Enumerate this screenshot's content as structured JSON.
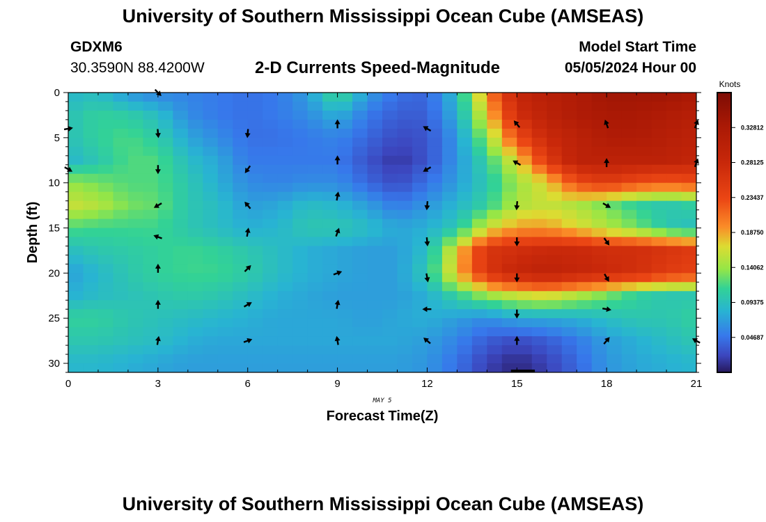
{
  "header": {
    "title": "University of Southern Mississippi Ocean Cube (AMSEAS)",
    "station_id": "GDXM6",
    "station_coords": "30.3590N  88.4200W",
    "plot_title": "2-D Currents Speed-Magnitude",
    "model_start_label": "Model Start Time",
    "model_start_value": "05/05/2024 Hour 00"
  },
  "footer": {
    "title": "University of Southern Mississippi Ocean Cube (AMSEAS)"
  },
  "chart_data": {
    "type": "heatmap",
    "title": "2-D Currents Speed-Magnitude",
    "xlabel": "Forecast Time(Z)",
    "ylabel": "Depth (ft)",
    "date_label": "MAY 5",
    "x_range": [
      0,
      21
    ],
    "y_range": [
      0,
      31
    ],
    "x_ticks": [
      0,
      3,
      6,
      9,
      12,
      15,
      18,
      21
    ],
    "y_ticks": [
      0,
      5,
      10,
      15,
      20,
      25,
      30
    ],
    "colorbar": {
      "label": "Knots",
      "range": [
        0,
        0.375
      ],
      "ticks": [
        "0.04687",
        "0.09375",
        "0.14062",
        "0.18750",
        "0.23437",
        "0.28125",
        "0.32812"
      ],
      "tick_values": [
        0.04687,
        0.09375,
        0.14062,
        0.1875,
        0.23437,
        0.28125,
        0.32812
      ]
    },
    "times": [
      0,
      1,
      2,
      3,
      4,
      5,
      6,
      7,
      8,
      9,
      10,
      11,
      12,
      13,
      14,
      15,
      16,
      17,
      18,
      19,
      20,
      21
    ],
    "depths": [
      0,
      2.5,
      5,
      7.5,
      10,
      12.5,
      15,
      17.5,
      20,
      22.5,
      25,
      27.5,
      30
    ],
    "speed_knots": [
      [
        0.085,
        0.09,
        0.065,
        0.055,
        0.055,
        0.05,
        0.045,
        0.05,
        0.07,
        0.12,
        0.07,
        0.045,
        0.04,
        0.09,
        0.2,
        0.29,
        0.31,
        0.32,
        0.34,
        0.34,
        0.34,
        0.33
      ],
      [
        0.095,
        0.11,
        0.105,
        0.09,
        0.06,
        0.05,
        0.045,
        0.05,
        0.06,
        0.08,
        0.05,
        0.035,
        0.035,
        0.08,
        0.17,
        0.27,
        0.3,
        0.32,
        0.33,
        0.33,
        0.32,
        0.31
      ],
      [
        0.095,
        0.11,
        0.12,
        0.105,
        0.075,
        0.06,
        0.045,
        0.045,
        0.05,
        0.055,
        0.04,
        0.025,
        0.03,
        0.065,
        0.14,
        0.23,
        0.28,
        0.3,
        0.32,
        0.32,
        0.31,
        0.3
      ],
      [
        0.085,
        0.1,
        0.12,
        0.12,
        0.09,
        0.075,
        0.05,
        0.05,
        0.05,
        0.05,
        0.03,
        0.015,
        0.03,
        0.065,
        0.11,
        0.17,
        0.25,
        0.3,
        0.3,
        0.3,
        0.3,
        0.29
      ],
      [
        0.14,
        0.13,
        0.12,
        0.12,
        0.1,
        0.08,
        0.06,
        0.055,
        0.06,
        0.06,
        0.04,
        0.025,
        0.045,
        0.07,
        0.1,
        0.14,
        0.17,
        0.23,
        0.25,
        0.23,
        0.22,
        0.23
      ],
      [
        0.16,
        0.15,
        0.13,
        0.125,
        0.1,
        0.09,
        0.07,
        0.075,
        0.09,
        0.085,
        0.07,
        0.05,
        0.065,
        0.085,
        0.11,
        0.15,
        0.16,
        0.15,
        0.13,
        0.11,
        0.1,
        0.11
      ],
      [
        0.12,
        0.115,
        0.115,
        0.115,
        0.1,
        0.09,
        0.08,
        0.085,
        0.1,
        0.1,
        0.09,
        0.075,
        0.08,
        0.1,
        0.16,
        0.19,
        0.19,
        0.17,
        0.15,
        0.13,
        0.1,
        0.09
      ],
      [
        0.09,
        0.1,
        0.105,
        0.11,
        0.115,
        0.11,
        0.1,
        0.09,
        0.08,
        0.075,
        0.07,
        0.07,
        0.09,
        0.17,
        0.26,
        0.27,
        0.28,
        0.28,
        0.27,
        0.27,
        0.26,
        0.25
      ],
      [
        0.07,
        0.085,
        0.1,
        0.11,
        0.115,
        0.115,
        0.105,
        0.09,
        0.08,
        0.075,
        0.07,
        0.07,
        0.1,
        0.18,
        0.26,
        0.29,
        0.3,
        0.29,
        0.28,
        0.27,
        0.25,
        0.24
      ],
      [
        0.08,
        0.09,
        0.095,
        0.1,
        0.105,
        0.1,
        0.09,
        0.08,
        0.075,
        0.07,
        0.07,
        0.07,
        0.08,
        0.11,
        0.14,
        0.16,
        0.17,
        0.15,
        0.13,
        0.11,
        0.1,
        0.1
      ],
      [
        0.11,
        0.11,
        0.1,
        0.095,
        0.09,
        0.085,
        0.08,
        0.075,
        0.075,
        0.075,
        0.07,
        0.075,
        0.08,
        0.07,
        0.06,
        0.075,
        0.075,
        0.08,
        0.09,
        0.1,
        0.1,
        0.11
      ],
      [
        0.1,
        0.1,
        0.095,
        0.09,
        0.08,
        0.075,
        0.075,
        0.075,
        0.075,
        0.075,
        0.075,
        0.075,
        0.07,
        0.055,
        0.035,
        0.025,
        0.035,
        0.05,
        0.07,
        0.08,
        0.09,
        0.1
      ],
      [
        0.085,
        0.085,
        0.08,
        0.075,
        0.07,
        0.07,
        0.07,
        0.07,
        0.07,
        0.07,
        0.07,
        0.07,
        0.065,
        0.045,
        0.02,
        0.008,
        0.02,
        0.04,
        0.065,
        0.075,
        0.08,
        0.085
      ]
    ],
    "vectors": [
      {
        "t": 0,
        "d": 0,
        "dir": 180,
        "len": 0
      },
      {
        "t": 3,
        "d": 0,
        "dir": 135,
        "len": 1
      },
      {
        "t": 0,
        "d": 4,
        "dir": 80,
        "len": 1
      },
      {
        "t": 3,
        "d": 4.5,
        "dir": 175,
        "len": 1
      },
      {
        "t": 6,
        "d": 4.5,
        "dir": 185,
        "len": 1
      },
      {
        "t": 9,
        "d": 3.5,
        "dir": 0,
        "len": 1
      },
      {
        "t": 12,
        "d": 4,
        "dir": 300,
        "len": 1
      },
      {
        "t": 15,
        "d": 3.5,
        "dir": 320,
        "len": 1
      },
      {
        "t": 18,
        "d": 3.5,
        "dir": 340,
        "len": 1
      },
      {
        "t": 21,
        "d": 3.5,
        "dir": 20,
        "len": 1
      },
      {
        "t": 0,
        "d": 8.5,
        "dir": 120,
        "len": 1
      },
      {
        "t": 3,
        "d": 8.5,
        "dir": 180,
        "len": 1
      },
      {
        "t": 6,
        "d": 8.5,
        "dir": 215,
        "len": 1
      },
      {
        "t": 9,
        "d": 7.5,
        "dir": 0,
        "len": 1
      },
      {
        "t": 12,
        "d": 8.5,
        "dir": 240,
        "len": 1
      },
      {
        "t": 15,
        "d": 7.8,
        "dir": 300,
        "len": 1
      },
      {
        "t": 18,
        "d": 7.8,
        "dir": 0,
        "len": 1
      },
      {
        "t": 21,
        "d": 7.8,
        "dir": 20,
        "len": 1
      },
      {
        "t": 0,
        "d": 12.5,
        "dir": 0,
        "len": 0
      },
      {
        "t": 3,
        "d": 12.5,
        "dir": 240,
        "len": 1
      },
      {
        "t": 6,
        "d": 12.5,
        "dir": 320,
        "len": 1
      },
      {
        "t": 9,
        "d": 11.5,
        "dir": 10,
        "len": 1
      },
      {
        "t": 12,
        "d": 12.5,
        "dir": 185,
        "len": 1
      },
      {
        "t": 15,
        "d": 12.5,
        "dir": 185,
        "len": 1
      },
      {
        "t": 18,
        "d": 12.5,
        "dir": 120,
        "len": 1
      },
      {
        "t": 3,
        "d": 16,
        "dir": 290,
        "len": 1
      },
      {
        "t": 6,
        "d": 15.5,
        "dir": 10,
        "len": 1
      },
      {
        "t": 9,
        "d": 15.5,
        "dir": 20,
        "len": 1
      },
      {
        "t": 12,
        "d": 16.5,
        "dir": 175,
        "len": 1
      },
      {
        "t": 15,
        "d": 16.5,
        "dir": 180,
        "len": 1
      },
      {
        "t": 18,
        "d": 16.5,
        "dir": 145,
        "len": 1
      },
      {
        "t": 3,
        "d": 19.5,
        "dir": 0,
        "len": 1
      },
      {
        "t": 6,
        "d": 19.5,
        "dir": 45,
        "len": 1
      },
      {
        "t": 9,
        "d": 20,
        "dir": 70,
        "len": 1
      },
      {
        "t": 12,
        "d": 20.5,
        "dir": 170,
        "len": 1
      },
      {
        "t": 15,
        "d": 20.5,
        "dir": 180,
        "len": 1
      },
      {
        "t": 18,
        "d": 20.5,
        "dir": 150,
        "len": 1
      },
      {
        "t": 3,
        "d": 23.5,
        "dir": 0,
        "len": 1
      },
      {
        "t": 6,
        "d": 23.5,
        "dir": 60,
        "len": 1
      },
      {
        "t": 9,
        "d": 23.5,
        "dir": 10,
        "len": 1
      },
      {
        "t": 12,
        "d": 24,
        "dir": 270,
        "len": 1
      },
      {
        "t": 15,
        "d": 24.5,
        "dir": 180,
        "len": 1
      },
      {
        "t": 18,
        "d": 24,
        "dir": 100,
        "len": 1
      },
      {
        "t": 3,
        "d": 27.5,
        "dir": 10,
        "len": 1
      },
      {
        "t": 6,
        "d": 27.5,
        "dir": 70,
        "len": 1
      },
      {
        "t": 9,
        "d": 27.5,
        "dir": 350,
        "len": 1
      },
      {
        "t": 12,
        "d": 27.5,
        "dir": 310,
        "len": 1
      },
      {
        "t": 15,
        "d": 27.5,
        "dir": 0,
        "len": 1
      },
      {
        "t": 18,
        "d": 27.5,
        "dir": 40,
        "len": 1
      },
      {
        "t": 21,
        "d": 27.5,
        "dir": 300,
        "len": 1
      }
    ]
  }
}
